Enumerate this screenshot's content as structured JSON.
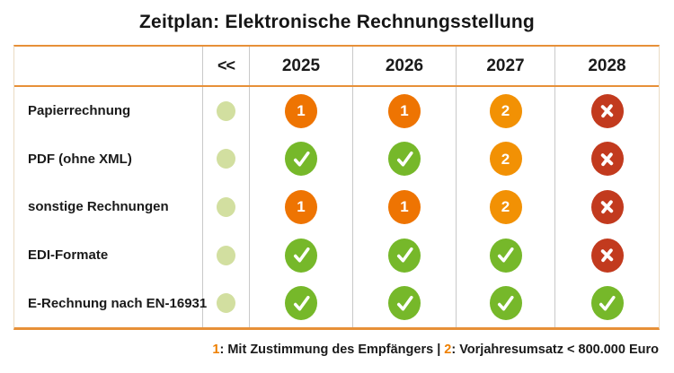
{
  "title": "Zeitplan: Elektronische Rechnungsstellung",
  "chart_data": {
    "type": "table",
    "title": "Zeitplan: Elektronische Rechnungsstellung",
    "columns": [
      "",
      "<<",
      "2025",
      "2026",
      "2027",
      "2028"
    ],
    "rows": [
      {
        "label": "Papierrechnung",
        "cells": [
          "dot",
          "1",
          "1",
          "2",
          "x"
        ]
      },
      {
        "label": "PDF (ohne XML)",
        "cells": [
          "dot",
          "check",
          "check",
          "2",
          "x"
        ]
      },
      {
        "label": "sonstige Rechnungen",
        "cells": [
          "dot",
          "1",
          "1",
          "2",
          "x"
        ]
      },
      {
        "label": "EDI-Formate",
        "cells": [
          "dot",
          "check",
          "check",
          "check",
          "x"
        ]
      },
      {
        "label": "E-Rechnung nach EN-16931",
        "cells": [
          "dot",
          "check",
          "check",
          "check",
          "check"
        ]
      }
    ],
    "cell_symbols": {
      "dot": "pale-green-dot",
      "1": "orange-circle-digit-1",
      "2": "orange-circle-digit-2",
      "check": "green-circle-checkmark",
      "x": "red-circle-cross"
    }
  },
  "legend": {
    "marker1": "1",
    "text1": ": Mit Zustimmung des Empfängers ",
    "separator": "| ",
    "marker2": "2",
    "text2": ": Vorjahresumsatz < 800.000 Euro"
  },
  "colors": {
    "rule_orange": "#E79038",
    "marker_orange_1": "#EE7402",
    "marker_orange_2": "#F29104",
    "allowed_green": "#76B82A",
    "not_allowed_red": "#C23A1E",
    "past_dot_green": "#D2DFA0",
    "legend_number_orange": "#EE7F00",
    "grid_line_gray": "#C9C9C9",
    "text_black": "#1a1a1a"
  }
}
